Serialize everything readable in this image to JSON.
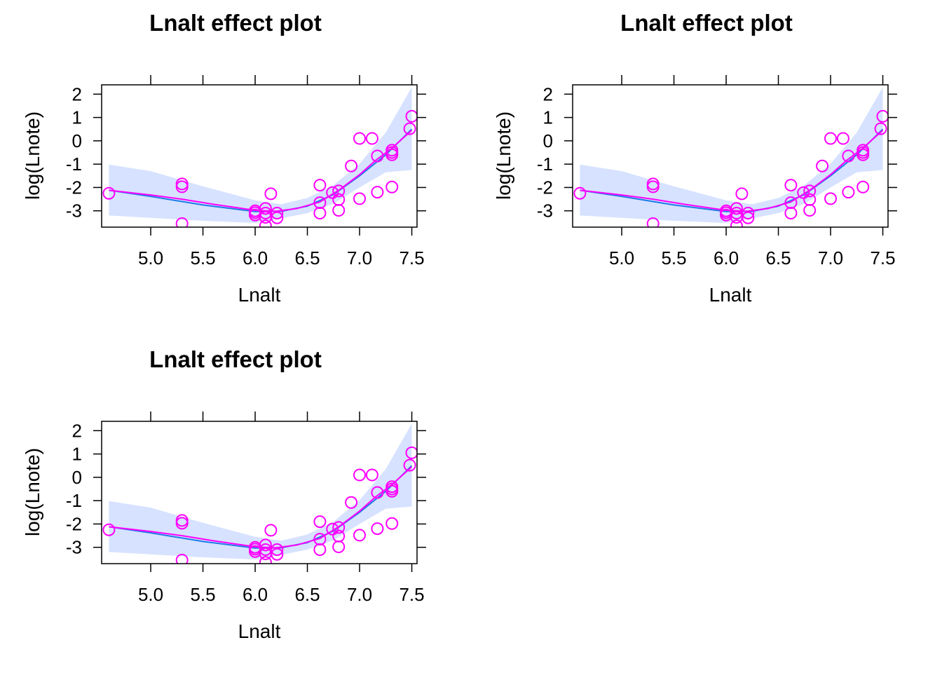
{
  "chart_data": [
    {
      "type": "scatter",
      "title": "Lnalt effect plot",
      "xlabel": "Lnalt",
      "ylabel": "log(Lnote)",
      "xlim": [
        4.53,
        7.55
      ],
      "ylim": [
        -3.7,
        2.4
      ],
      "xticks": [
        5.0,
        5.5,
        6.0,
        6.5,
        7.0,
        7.5
      ],
      "xtick_labels": [
        "5.0",
        "5.5",
        "6.0",
        "6.5",
        "7.0",
        "7.5"
      ],
      "yticks": [
        -3,
        -2,
        -1,
        0,
        1,
        2
      ],
      "ytick_labels": [
        "-3",
        "-2",
        "-1",
        "0",
        "1",
        "2"
      ],
      "grid": false,
      "colors": {
        "band": "#d6e2ff",
        "fit": "#1f7ae6",
        "smooth": "#ff00ff",
        "points": "#ff00ff"
      },
      "fit": {
        "x": [
          4.6,
          5.0,
          5.5,
          6.0,
          6.25,
          6.5,
          6.75,
          7.0,
          7.25,
          7.5
        ],
        "y": [
          -2.12,
          -2.38,
          -2.75,
          -3.03,
          -3.02,
          -2.8,
          -2.3,
          -1.5,
          -0.6,
          0.5
        ]
      },
      "band_upper": {
        "x": [
          4.6,
          5.0,
          5.5,
          6.0,
          6.25,
          6.5,
          6.75,
          7.0,
          7.25,
          7.5
        ],
        "y": [
          -1.02,
          -1.3,
          -1.95,
          -2.55,
          -2.72,
          -2.45,
          -1.9,
          -0.98,
          0.35,
          2.3
        ]
      },
      "band_lower": {
        "x": [
          4.6,
          5.0,
          5.5,
          6.0,
          6.25,
          6.5,
          6.75,
          7.0,
          7.25,
          7.5
        ],
        "y": [
          -3.2,
          -3.3,
          -3.43,
          -3.52,
          -3.32,
          -3.1,
          -2.7,
          -2.0,
          -1.35,
          -1.25
        ]
      },
      "smooth": {
        "x": [
          4.6,
          5.0,
          5.3,
          5.6,
          6.0,
          6.2,
          6.4,
          6.62,
          6.8,
          7.0,
          7.15,
          7.3,
          7.5
        ],
        "y": [
          -2.12,
          -2.32,
          -2.5,
          -2.72,
          -2.98,
          -3.02,
          -2.9,
          -2.62,
          -2.12,
          -1.45,
          -0.85,
          -0.35,
          0.45
        ]
      },
      "points": {
        "x": [
          4.6,
          5.3,
          5.3,
          5.3,
          6.0,
          6.0,
          6.0,
          6.1,
          6.1,
          6.1,
          6.1,
          6.15,
          6.21,
          6.21,
          6.62,
          6.62,
          6.62,
          6.74,
          6.8,
          6.8,
          6.8,
          6.92,
          7.0,
          7.0,
          7.12,
          7.17,
          7.17,
          7.31,
          7.31,
          7.31,
          7.31,
          7.48,
          7.5
        ],
        "y": [
          -2.25,
          -1.85,
          -1.97,
          -3.55,
          -3.0,
          -3.08,
          -3.18,
          -2.9,
          -3.1,
          -3.28,
          -3.65,
          -2.27,
          -3.1,
          -3.3,
          -1.9,
          -2.65,
          -3.1,
          -2.22,
          -2.15,
          -2.52,
          -2.98,
          -1.08,
          0.1,
          -2.48,
          0.1,
          -0.65,
          -2.2,
          -0.4,
          -0.6,
          -0.5,
          -1.98,
          0.52,
          1.05
        ]
      }
    },
    {
      "type": "scatter",
      "title": "Lnalt effect plot",
      "xlabel": "Lnalt",
      "ylabel": "log(Lnote)",
      "xlim": [
        4.53,
        7.55
      ],
      "ylim": [
        -3.7,
        2.4
      ],
      "xticks": [
        5.0,
        5.5,
        6.0,
        6.5,
        7.0,
        7.5
      ],
      "xtick_labels": [
        "5.0",
        "5.5",
        "6.0",
        "6.5",
        "7.0",
        "7.5"
      ],
      "yticks": [
        -3,
        -2,
        -1,
        0,
        1,
        2
      ],
      "ytick_labels": [
        "-3",
        "-2",
        "-1",
        "0",
        "1",
        "2"
      ],
      "grid": false,
      "colors": {
        "band": "#d6e2ff",
        "fit": "#1f7ae6",
        "smooth": "#ff00ff",
        "points": "#ff00ff"
      },
      "fit": {
        "x": [
          4.6,
          5.0,
          5.5,
          6.0,
          6.25,
          6.5,
          6.75,
          7.0,
          7.25,
          7.5
        ],
        "y": [
          -2.12,
          -2.38,
          -2.75,
          -3.03,
          -3.02,
          -2.8,
          -2.3,
          -1.5,
          -0.6,
          0.5
        ]
      },
      "band_upper": {
        "x": [
          4.6,
          5.0,
          5.5,
          6.0,
          6.25,
          6.5,
          6.75,
          7.0,
          7.25,
          7.5
        ],
        "y": [
          -1.02,
          -1.3,
          -1.95,
          -2.55,
          -2.72,
          -2.45,
          -1.9,
          -0.98,
          0.35,
          2.3
        ]
      },
      "band_lower": {
        "x": [
          4.6,
          5.0,
          5.5,
          6.0,
          6.25,
          6.5,
          6.75,
          7.0,
          7.25,
          7.5
        ],
        "y": [
          -3.2,
          -3.3,
          -3.43,
          -3.52,
          -3.32,
          -3.1,
          -2.7,
          -2.0,
          -1.35,
          -1.25
        ]
      },
      "smooth": {
        "x": [
          4.6,
          5.0,
          5.3,
          5.6,
          6.0,
          6.2,
          6.4,
          6.62,
          6.8,
          7.0,
          7.15,
          7.3,
          7.5
        ],
        "y": [
          -2.12,
          -2.32,
          -2.5,
          -2.72,
          -2.98,
          -3.02,
          -2.9,
          -2.62,
          -2.12,
          -1.45,
          -0.85,
          -0.35,
          0.45
        ]
      },
      "points": {
        "x": [
          4.6,
          5.3,
          5.3,
          5.3,
          6.0,
          6.0,
          6.0,
          6.1,
          6.1,
          6.1,
          6.1,
          6.15,
          6.21,
          6.21,
          6.62,
          6.62,
          6.62,
          6.74,
          6.8,
          6.8,
          6.8,
          6.92,
          7.0,
          7.0,
          7.12,
          7.17,
          7.17,
          7.31,
          7.31,
          7.31,
          7.31,
          7.48,
          7.5
        ],
        "y": [
          -2.25,
          -1.85,
          -1.97,
          -3.55,
          -3.0,
          -3.08,
          -3.18,
          -2.9,
          -3.1,
          -3.28,
          -3.65,
          -2.27,
          -3.1,
          -3.3,
          -1.9,
          -2.65,
          -3.1,
          -2.22,
          -2.15,
          -2.52,
          -2.98,
          -1.08,
          0.1,
          -2.48,
          0.1,
          -0.65,
          -2.2,
          -0.4,
          -0.6,
          -0.5,
          -1.98,
          0.52,
          1.05
        ]
      }
    },
    {
      "type": "scatter",
      "title": "Lnalt effect plot",
      "xlabel": "Lnalt",
      "ylabel": "log(Lnote)",
      "xlim": [
        4.53,
        7.55
      ],
      "ylim": [
        -3.7,
        2.4
      ],
      "xticks": [
        5.0,
        5.5,
        6.0,
        6.5,
        7.0,
        7.5
      ],
      "xtick_labels": [
        "5.0",
        "5.5",
        "6.0",
        "6.5",
        "7.0",
        "7.5"
      ],
      "yticks": [
        -3,
        -2,
        -1,
        0,
        1,
        2
      ],
      "ytick_labels": [
        "-3",
        "-2",
        "-1",
        "0",
        "1",
        "2"
      ],
      "grid": false,
      "colors": {
        "band": "#d6e2ff",
        "fit": "#1f7ae6",
        "smooth": "#ff00ff",
        "points": "#ff00ff"
      },
      "fit": {
        "x": [
          4.6,
          5.0,
          5.5,
          6.0,
          6.25,
          6.5,
          6.75,
          7.0,
          7.25,
          7.5
        ],
        "y": [
          -2.12,
          -2.38,
          -2.75,
          -3.03,
          -3.02,
          -2.8,
          -2.3,
          -1.5,
          -0.6,
          0.5
        ]
      },
      "band_upper": {
        "x": [
          4.6,
          5.0,
          5.5,
          6.0,
          6.25,
          6.5,
          6.75,
          7.0,
          7.25,
          7.5
        ],
        "y": [
          -1.02,
          -1.3,
          -1.95,
          -2.55,
          -2.72,
          -2.45,
          -1.9,
          -0.98,
          0.35,
          2.3
        ]
      },
      "band_lower": {
        "x": [
          4.6,
          5.0,
          5.5,
          6.0,
          6.25,
          6.5,
          6.75,
          7.0,
          7.25,
          7.5
        ],
        "y": [
          -3.2,
          -3.3,
          -3.43,
          -3.52,
          -3.32,
          -3.1,
          -2.7,
          -2.0,
          -1.35,
          -1.25
        ]
      },
      "smooth": {
        "x": [
          4.6,
          5.0,
          5.3,
          5.6,
          6.0,
          6.2,
          6.4,
          6.62,
          6.8,
          7.0,
          7.15,
          7.3,
          7.5
        ],
        "y": [
          -2.12,
          -2.32,
          -2.5,
          -2.72,
          -2.98,
          -3.02,
          -2.9,
          -2.62,
          -2.12,
          -1.45,
          -0.85,
          -0.35,
          0.45
        ]
      },
      "points": {
        "x": [
          4.6,
          5.3,
          5.3,
          5.3,
          6.0,
          6.0,
          6.0,
          6.1,
          6.1,
          6.1,
          6.1,
          6.15,
          6.21,
          6.21,
          6.62,
          6.62,
          6.62,
          6.74,
          6.8,
          6.8,
          6.8,
          6.92,
          7.0,
          7.0,
          7.12,
          7.17,
          7.17,
          7.31,
          7.31,
          7.31,
          7.31,
          7.48,
          7.5
        ],
        "y": [
          -2.25,
          -1.85,
          -1.97,
          -3.55,
          -3.0,
          -3.08,
          -3.18,
          -2.9,
          -3.1,
          -3.28,
          -3.65,
          -2.27,
          -3.1,
          -3.3,
          -1.9,
          -2.65,
          -3.1,
          -2.22,
          -2.15,
          -2.52,
          -2.98,
          -1.08,
          0.1,
          -2.48,
          0.1,
          -0.65,
          -2.2,
          -0.4,
          -0.6,
          -0.5,
          -1.98,
          0.52,
          1.05
        ]
      }
    }
  ]
}
